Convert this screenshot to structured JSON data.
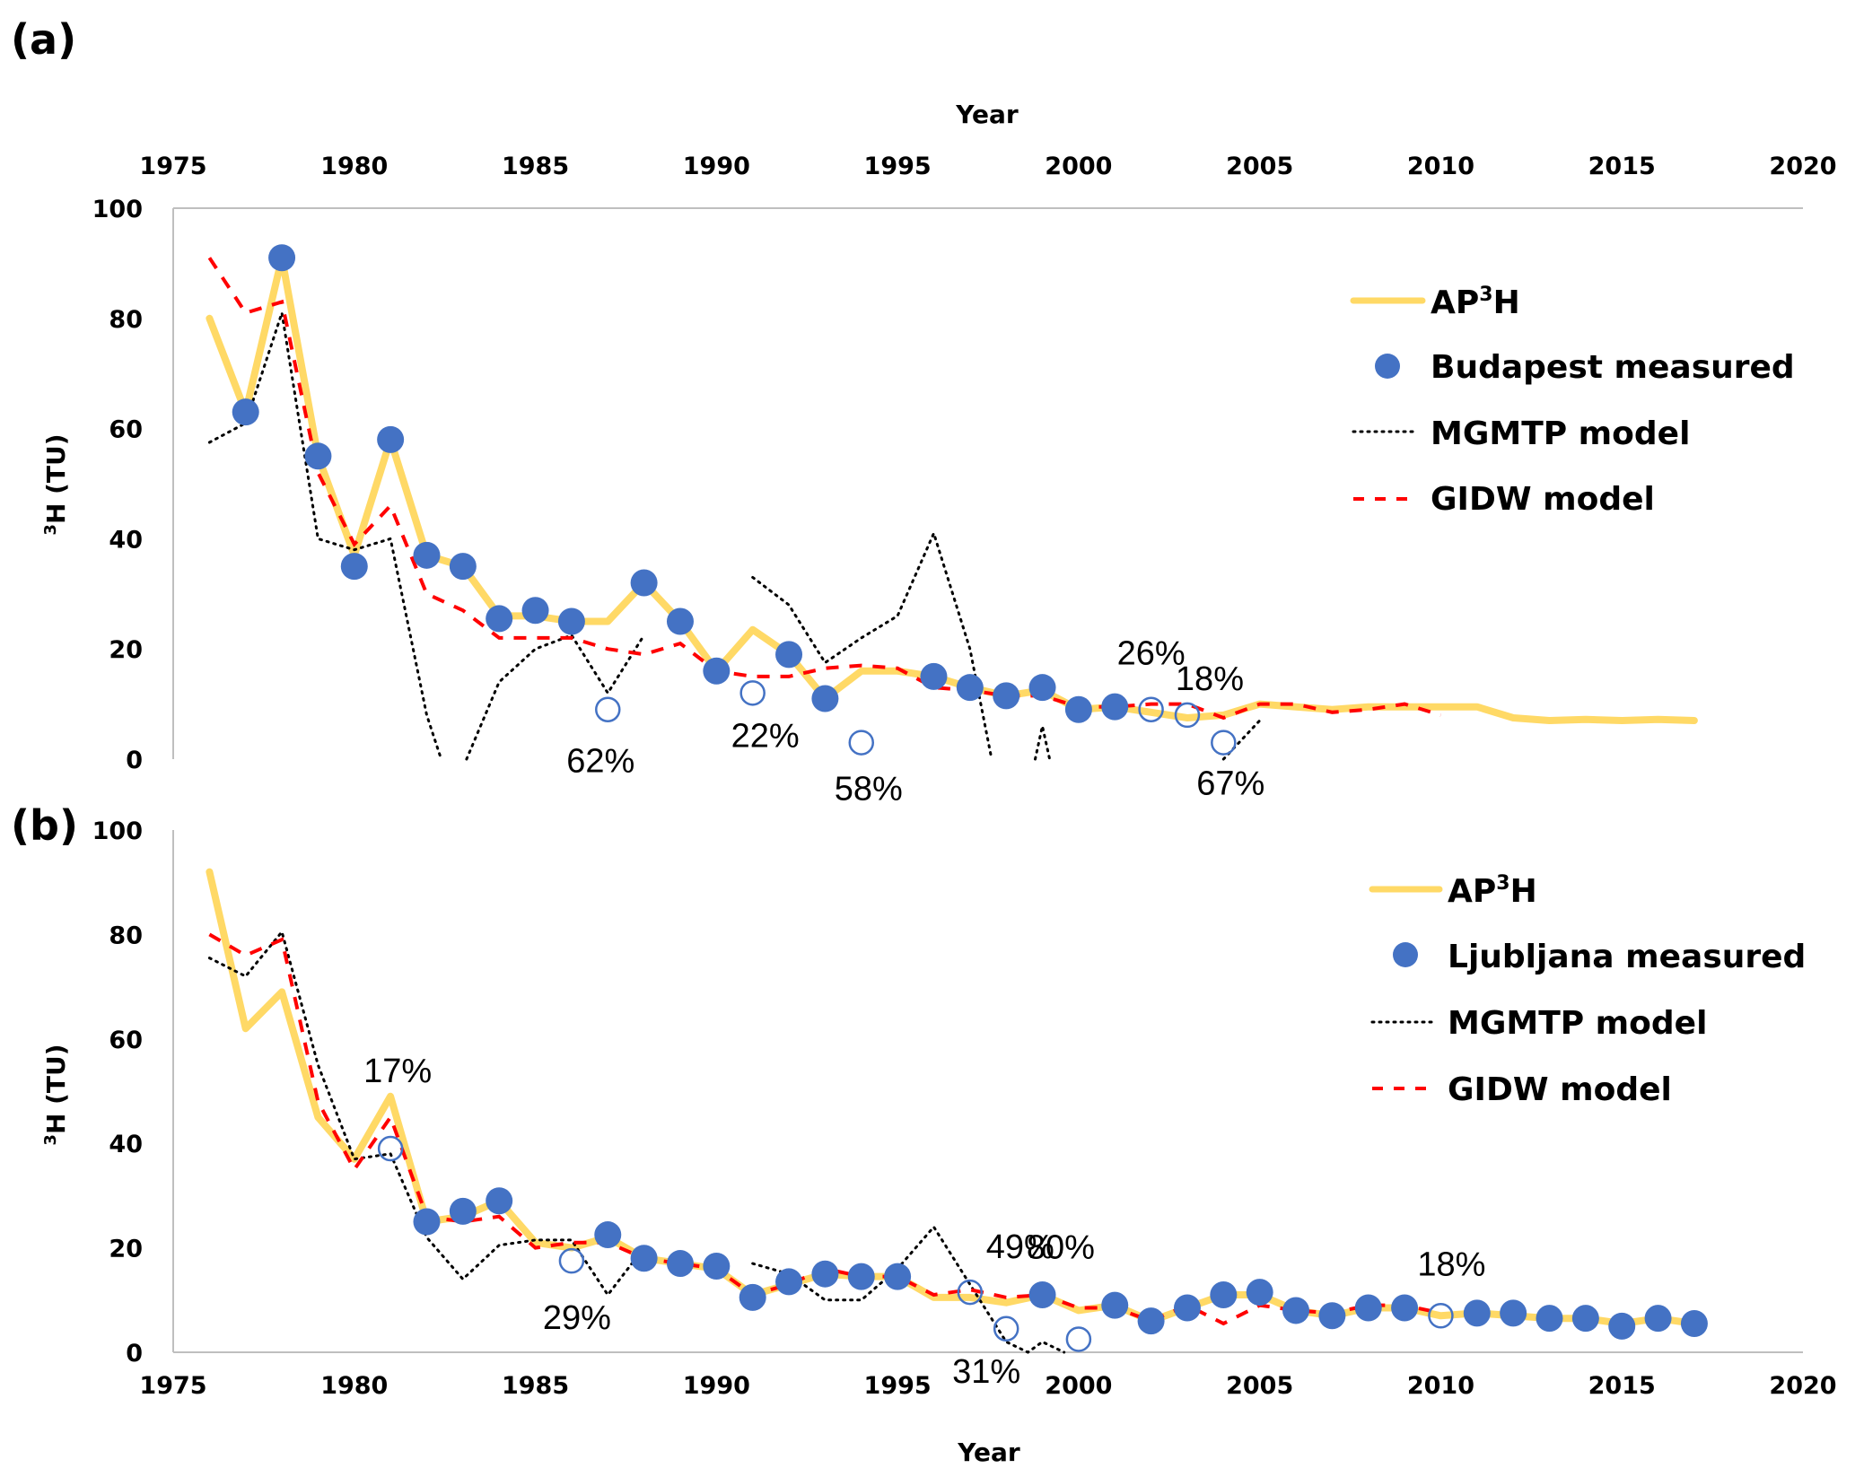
{
  "chart_data": [
    {
      "type": "line",
      "panel_label": "(a)",
      "xlabel": "Year",
      "xaxis_position": "top",
      "ylabel": "³H (TU)",
      "xlim": [
        1975,
        2020
      ],
      "ylim": [
        0,
        100
      ],
      "x_ticks": [
        "1975",
        "1980",
        "1985",
        "1990",
        "1995",
        "2000",
        "2005",
        "2010",
        "2015",
        "2020"
      ],
      "y_ticks": [
        "0",
        "20",
        "40",
        "60",
        "80",
        "100"
      ],
      "grid": false,
      "legend_position": "top-right",
      "legend": [
        "AP³H",
        "Budapest measured",
        "MGMTP model",
        "GIDW model"
      ],
      "series": [
        {
          "name": "AP³H",
          "style": "solid",
          "color": "#FFD966",
          "x": [
            1976,
            1977,
            1978,
            1979,
            1980,
            1981,
            1982,
            1983,
            1984,
            1985,
            1986,
            1987,
            1988,
            1989,
            1990,
            1991,
            1992,
            1993,
            1994,
            1995,
            1996,
            1997,
            1998,
            1999,
            2000,
            2001,
            2002,
            2003,
            2004,
            2005,
            2006,
            2007,
            2008,
            2009,
            2010,
            2011,
            2012,
            2013,
            2014,
            2015,
            2016,
            2017
          ],
          "y": [
            80,
            63,
            91,
            55,
            37,
            58,
            37,
            35,
            26,
            26,
            25,
            25,
            32,
            25,
            16,
            23.5,
            19,
            11,
            16,
            16,
            15,
            13,
            11.5,
            12.5,
            9,
            9.5,
            8.5,
            7.5,
            8,
            10,
            9.5,
            9,
            9.5,
            9.5,
            9.5,
            9.5,
            7.5,
            7,
            7.2,
            7,
            7.2,
            7
          ]
        },
        {
          "name": "Budapest measured",
          "style": "marker-filled",
          "color": "#4472C4",
          "x": [
            1977,
            1978,
            1979,
            1980,
            1981,
            1982,
            1983,
            1984,
            1985,
            1986,
            1988,
            1989,
            1990,
            1992,
            1993,
            1996,
            1997,
            1998,
            1999,
            2000,
            2001
          ],
          "y": [
            63,
            91,
            55,
            35,
            58,
            37,
            35,
            25.5,
            27,
            25,
            32,
            25,
            16,
            19,
            11,
            15,
            13,
            11.5,
            13,
            9,
            9.5
          ]
        },
        {
          "name": "Budapest measured (excluded)",
          "style": "marker-open",
          "color": "#4472C4",
          "x": [
            1987,
            1991,
            1994,
            2002,
            2003,
            2004
          ],
          "y": [
            9,
            12,
            3,
            9,
            8,
            3
          ],
          "labels": [
            "62%",
            "22%",
            "58%",
            "26%",
            "18%",
            "67%"
          ]
        },
        {
          "name": "MGMTP model",
          "style": "dotted",
          "color": "#000000",
          "segments": [
            {
              "x": [
                1976,
                1977,
                1978,
                1979,
                1980,
                1981,
                1982,
                1982.4
              ],
              "y": [
                57.5,
                61,
                81,
                40,
                38,
                40,
                8,
                0
              ]
            },
            {
              "x": [
                1983.1,
                1984,
                1985,
                1986,
                1987,
                1988
              ],
              "y": [
                0,
                14,
                20,
                22.5,
                12,
                22.5
              ]
            },
            {
              "x": [
                1991,
                1992,
                1993,
                1994,
                1995,
                1996,
                1997,
                1997.6
              ],
              "y": [
                33,
                28,
                17.5,
                22,
                26,
                41,
                20,
                0
              ]
            },
            {
              "x": [
                1998.8,
                1999,
                1999.2
              ],
              "y": [
                0,
                6,
                0
              ]
            },
            {
              "x": [
                2004,
                2005
              ],
              "y": [
                0,
                7
              ]
            }
          ]
        },
        {
          "name": "GIDW model",
          "style": "dashed",
          "color": "#FF0000",
          "x": [
            1976,
            1977,
            1978,
            1979,
            1980,
            1981,
            1982,
            1983,
            1984,
            1985,
            1986,
            1987,
            1988,
            1989,
            1990,
            1991,
            1992,
            1993,
            1994,
            1995,
            1996,
            1997,
            1998,
            1999,
            2000,
            2001,
            2002,
            2003,
            2004,
            2005,
            2006,
            2007,
            2008,
            2009,
            2010
          ],
          "y": [
            91,
            81,
            83,
            52,
            39,
            46,
            30,
            27,
            22,
            22,
            22,
            20,
            19,
            21,
            16,
            15,
            15,
            16.5,
            17,
            16.5,
            13,
            12.5,
            11.5,
            11.5,
            9.5,
            9.5,
            10,
            10,
            7.5,
            10,
            10,
            8.5,
            9,
            10,
            8
          ]
        }
      ],
      "annotations": [
        "62%",
        "22%",
        "58%",
        "26%",
        "18%",
        "67%"
      ]
    },
    {
      "type": "line",
      "panel_label": "(b)",
      "xlabel": "Year",
      "xaxis_position": "bottom",
      "ylabel": "³H (TU)",
      "xlim": [
        1975,
        2020
      ],
      "ylim": [
        0,
        100
      ],
      "x_ticks": [
        "1975",
        "1980",
        "1985",
        "1990",
        "1995",
        "2000",
        "2005",
        "2010",
        "2015",
        "2020"
      ],
      "y_ticks": [
        "0",
        "20",
        "40",
        "60",
        "80",
        "100"
      ],
      "grid": false,
      "legend_position": "top-right",
      "legend": [
        "AP³H",
        "Ljubljana measured",
        "MGMTP model",
        "GIDW model"
      ],
      "series": [
        {
          "name": "AP³H",
          "style": "solid",
          "color": "#FFD966",
          "x": [
            1976,
            1977,
            1978,
            1979,
            1980,
            1981,
            1982,
            1983,
            1984,
            1985,
            1986,
            1987,
            1988,
            1989,
            1990,
            1991,
            1992,
            1993,
            1994,
            1995,
            1996,
            1997,
            1998,
            1999,
            2000,
            2001,
            2002,
            2003,
            2004,
            2005,
            2006,
            2007,
            2008,
            2009,
            2010,
            2011,
            2012,
            2013,
            2014,
            2015,
            2016,
            2017
          ],
          "y": [
            92,
            62,
            69,
            45,
            37,
            49,
            25,
            26,
            29,
            21,
            20,
            22,
            18,
            17,
            16,
            11,
            13,
            15,
            14.5,
            14.5,
            10.5,
            10.5,
            9.5,
            11,
            8,
            9,
            6,
            8.5,
            11,
            11,
            8,
            7,
            8.5,
            8.5,
            7,
            7.5,
            7,
            6.5,
            6.5,
            5.5,
            6.5,
            5.5
          ]
        },
        {
          "name": "Ljubljana measured",
          "style": "marker-filled",
          "color": "#4472C4",
          "x": [
            1982,
            1983,
            1984,
            1987,
            1988,
            1989,
            1990,
            1991,
            1992,
            1993,
            1994,
            1995,
            1999,
            2001,
            2002,
            2003,
            2004,
            2005,
            2006,
            2007,
            2008,
            2009,
            2011,
            2012,
            2013,
            2014,
            2015,
            2016,
            2017
          ],
          "y": [
            25,
            27,
            29,
            22.5,
            18,
            17,
            16.5,
            10.5,
            13.5,
            15,
            14.5,
            14.5,
            11,
            9,
            6,
            8.5,
            11,
            11.5,
            8,
            7,
            8.5,
            8.5,
            7.5,
            7.5,
            6.5,
            6.5,
            5,
            6.5,
            5.5
          ]
        },
        {
          "name": "Ljubljana measured (excluded)",
          "style": "marker-open",
          "color": "#4472C4",
          "x": [
            1981,
            1986,
            1997,
            1998,
            2000,
            2010
          ],
          "y": [
            39,
            17.5,
            11.5,
            4.5,
            2.5,
            7
          ],
          "labels": [
            "17%",
            "29%",
            "49%",
            "31%",
            "80%",
            "18%"
          ]
        },
        {
          "name": "MGMTP model",
          "style": "dotted",
          "color": "#000000",
          "segments": [
            {
              "x": [
                1976,
                1977,
                1978,
                1979,
                1980,
                1981,
                1982,
                1983,
                1984,
                1985,
                1986,
                1987,
                1988
              ],
              "y": [
                75.5,
                72,
                80.5,
                55,
                37,
                38,
                22,
                14,
                20.5,
                21.5,
                21.5,
                11,
                20
              ]
            },
            {
              "x": [
                1991,
                1992,
                1993,
                1994,
                1995,
                1996,
                1997,
                1998,
                1998.6,
                1999,
                1999.6
              ],
              "y": [
                17,
                15,
                10,
                10,
                16,
                24,
                13,
                2,
                0,
                2,
                0
              ]
            }
          ]
        },
        {
          "name": "GIDW model",
          "style": "dashed",
          "color": "#FF0000",
          "x": [
            1976,
            1977,
            1978,
            1979,
            1980,
            1981,
            1982,
            1983,
            1984,
            1985,
            1986,
            1987,
            1988,
            1989,
            1990,
            1991,
            1992,
            1993,
            1994,
            1995,
            1996,
            1997,
            1998,
            1999,
            2000,
            2001,
            2002,
            2003,
            2004,
            2005,
            2006,
            2007,
            2008,
            2009,
            2010
          ],
          "y": [
            80,
            76,
            79,
            48,
            35,
            45,
            26,
            25,
            26,
            20,
            21,
            21,
            18,
            17,
            16,
            11,
            13,
            16,
            14.5,
            14.5,
            11,
            12,
            10.5,
            11,
            8.5,
            8.5,
            6,
            9,
            5.5,
            9,
            8,
            7.5,
            9,
            9,
            7.5
          ]
        }
      ],
      "annotations": [
        "17%",
        "29%",
        "49%",
        "31%",
        "80%",
        "18%"
      ]
    }
  ],
  "panels": [
    {
      "label": "(a)",
      "xlabel": "Year",
      "ylabel_sup": "3",
      "ylabel_rest": "H (TU)",
      "legend": [
        {
          "main": "AP",
          "sup": "3",
          "tail": "H"
        },
        {
          "main": "Budapest measured",
          "sup": "",
          "tail": ""
        },
        {
          "main": "MGMTP model",
          "sup": "",
          "tail": ""
        },
        {
          "main": "GIDW model",
          "sup": "",
          "tail": ""
        }
      ]
    },
    {
      "label": "(b)",
      "xlabel": "Year",
      "ylabel_sup": "3",
      "ylabel_rest": "H (TU)",
      "legend": [
        {
          "main": "AP",
          "sup": "3",
          "tail": "H"
        },
        {
          "main": "Ljubljana measured",
          "sup": "",
          "tail": ""
        },
        {
          "main": "MGMTP model",
          "sup": "",
          "tail": ""
        },
        {
          "main": "GIDW model",
          "sup": "",
          "tail": ""
        }
      ]
    }
  ],
  "colors": {
    "ap3h": "#FFD966",
    "measured": "#4472C4",
    "mgmtp": "#000000",
    "gidw": "#FF0000",
    "axis": "#BFBFBF"
  }
}
